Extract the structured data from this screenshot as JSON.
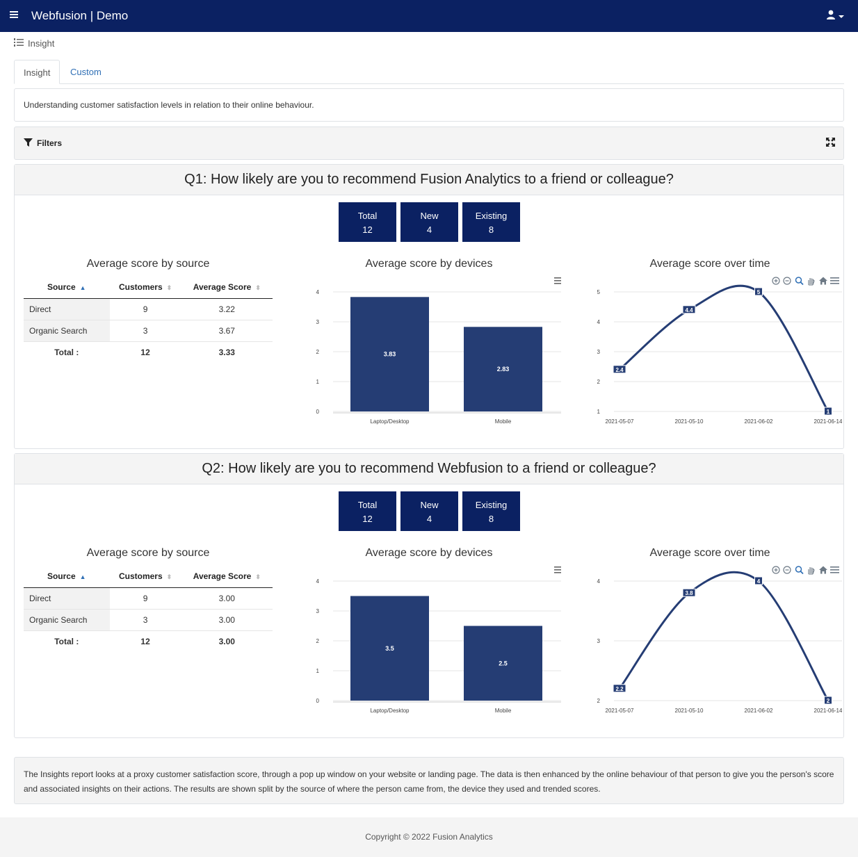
{
  "app": {
    "brand": "Webfusion | Demo"
  },
  "breadcrumb": {
    "label": "Insight"
  },
  "tabs": [
    {
      "label": "Insight"
    },
    {
      "label": "Custom"
    }
  ],
  "description": "Understanding customer satisfaction levels in relation to their online behaviour.",
  "filters": {
    "label": "Filters"
  },
  "questions": [
    {
      "title": "Q1: How likely are you to recommend Fusion Analytics to a friend or colleague?",
      "stats": [
        {
          "label": "Total",
          "value": "12"
        },
        {
          "label": "New",
          "value": "4"
        },
        {
          "label": "Existing",
          "value": "8"
        }
      ],
      "source_title": "Average score by source",
      "devices_title": "Average score by devices",
      "time_title": "Average score over time",
      "table": {
        "headers": [
          "Source",
          "Customers",
          "Average Score"
        ],
        "rows": [
          [
            "Direct",
            "9",
            "3.22"
          ],
          [
            "Organic Search",
            "3",
            "3.67"
          ]
        ],
        "total": [
          "Total :",
          "12",
          "3.33"
        ]
      }
    },
    {
      "title": "Q2: How likely are you to recommend Webfusion to a friend or colleague?",
      "stats": [
        {
          "label": "Total",
          "value": "12"
        },
        {
          "label": "New",
          "value": "4"
        },
        {
          "label": "Existing",
          "value": "8"
        }
      ],
      "source_title": "Average score by source",
      "devices_title": "Average score by devices",
      "time_title": "Average score over time",
      "table": {
        "headers": [
          "Source",
          "Customers",
          "Average Score"
        ],
        "rows": [
          [
            "Direct",
            "9",
            "3.00"
          ],
          [
            "Organic Search",
            "3",
            "3.00"
          ]
        ],
        "total": [
          "Total :",
          "12",
          "3.00"
        ]
      }
    }
  ],
  "chart_data": [
    {
      "type": "bar",
      "categories": [
        "Laptop/Desktop",
        "Mobile"
      ],
      "values": [
        3.83,
        2.83
      ],
      "data_labels": [
        "3.83",
        "2.83"
      ],
      "ylim": [
        0,
        4
      ],
      "yticks": [
        "0",
        "1",
        "2",
        "3",
        "4"
      ],
      "color": "#253d74"
    },
    {
      "type": "line",
      "x": [
        "2021-05-07",
        "2021-05-10",
        "2021-06-02",
        "2021-06-14"
      ],
      "values": [
        2.4,
        4.4,
        5,
        1
      ],
      "data_labels": [
        "2.4",
        "4.4",
        "5",
        "1"
      ],
      "ylim": [
        1,
        5
      ],
      "yticks": [
        "1",
        "2",
        "3",
        "4",
        "5"
      ],
      "color": "#253d74"
    },
    {
      "type": "bar",
      "categories": [
        "Laptop/Desktop",
        "Mobile"
      ],
      "values": [
        3.5,
        2.5
      ],
      "data_labels": [
        "3.5",
        "2.5"
      ],
      "ylim": [
        0,
        4
      ],
      "yticks": [
        "0",
        "1",
        "2",
        "3",
        "4"
      ],
      "color": "#253d74"
    },
    {
      "type": "line",
      "x": [
        "2021-05-07",
        "2021-05-10",
        "2021-06-02",
        "2021-06-14"
      ],
      "values": [
        2.2,
        3.8,
        4,
        2
      ],
      "data_labels": [
        "2.2",
        "3.8",
        "4",
        "2"
      ],
      "ylim": [
        2,
        4
      ],
      "yticks": [
        "2",
        "3",
        "4"
      ],
      "color": "#253d74"
    }
  ],
  "footer_note": "The Insights report looks at a proxy customer satisfaction score, through a pop up window on your website or landing page. The data is then enhanced by the online behaviour of that person to give you the person's score and associated insights on their actions. The results are shown split by the source of where the person came from, the device they used and trended scores.",
  "footer": "Copyright © 2022 Fusion Analytics",
  "icons": {
    "menu": "hamburger-icon",
    "user": "user-icon",
    "filter": "funnel-icon",
    "expand": "expand-icon"
  }
}
